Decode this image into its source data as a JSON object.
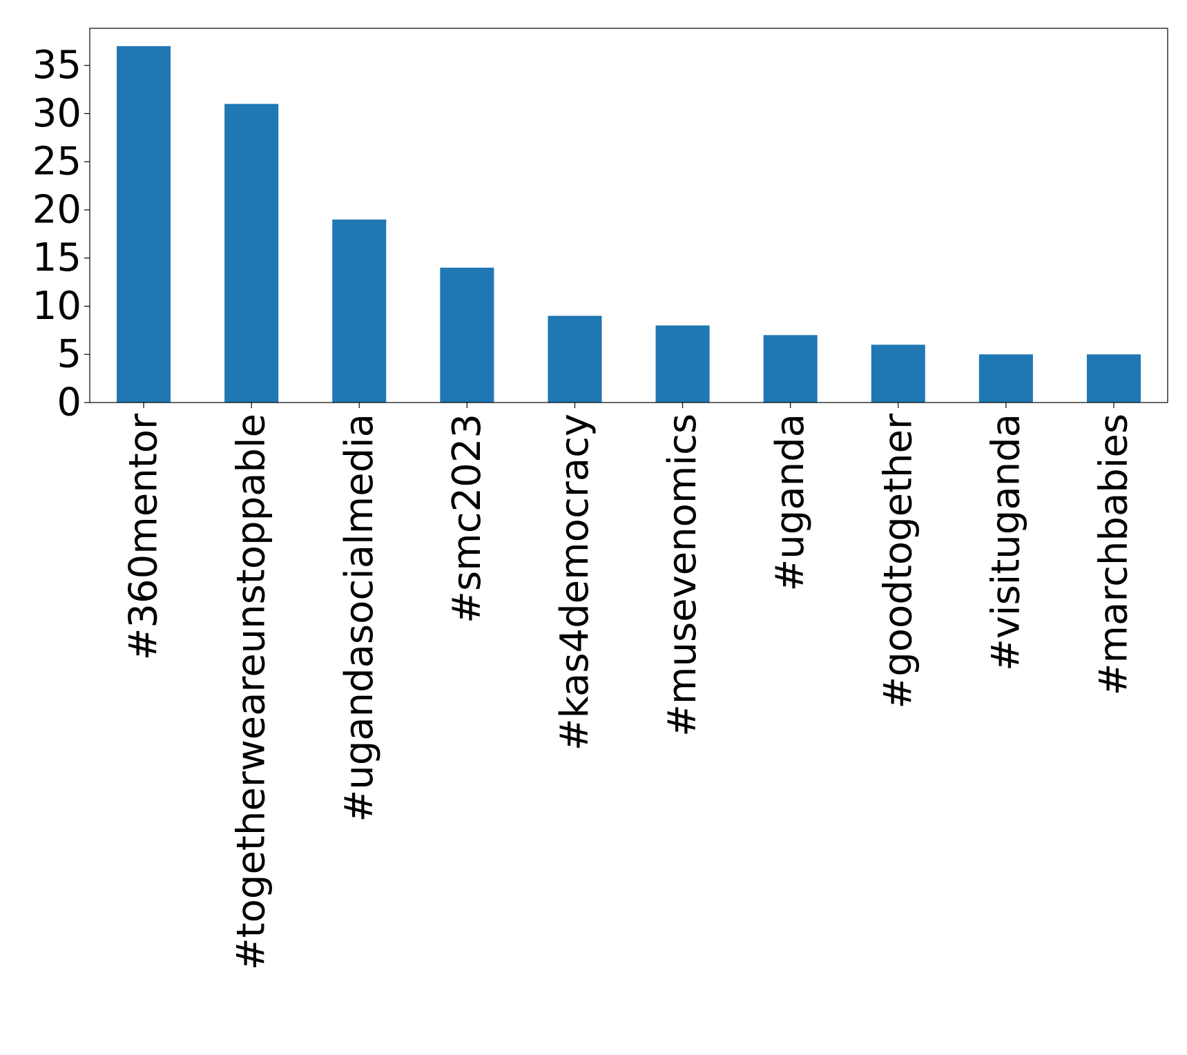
{
  "chart_data": {
    "type": "bar",
    "title": "",
    "xlabel": "",
    "ylabel": "",
    "categories": [
      "#360mentor",
      "#togetherweareunstoppable",
      "#ugandasocialmedia",
      "#smc2023",
      "#kas4democracy",
      "#musevenomics",
      "#uganda",
      "#goodtogether",
      "#visituganda",
      "#marchbabies"
    ],
    "values": [
      37,
      31,
      19,
      14,
      9,
      8,
      7,
      6,
      5,
      5
    ],
    "ylim": [
      0,
      38.85
    ],
    "yticks": [
      0,
      5,
      10,
      15,
      20,
      25,
      30,
      35
    ],
    "bar_color": "#1f77b4",
    "grid": false,
    "legend": "none"
  }
}
